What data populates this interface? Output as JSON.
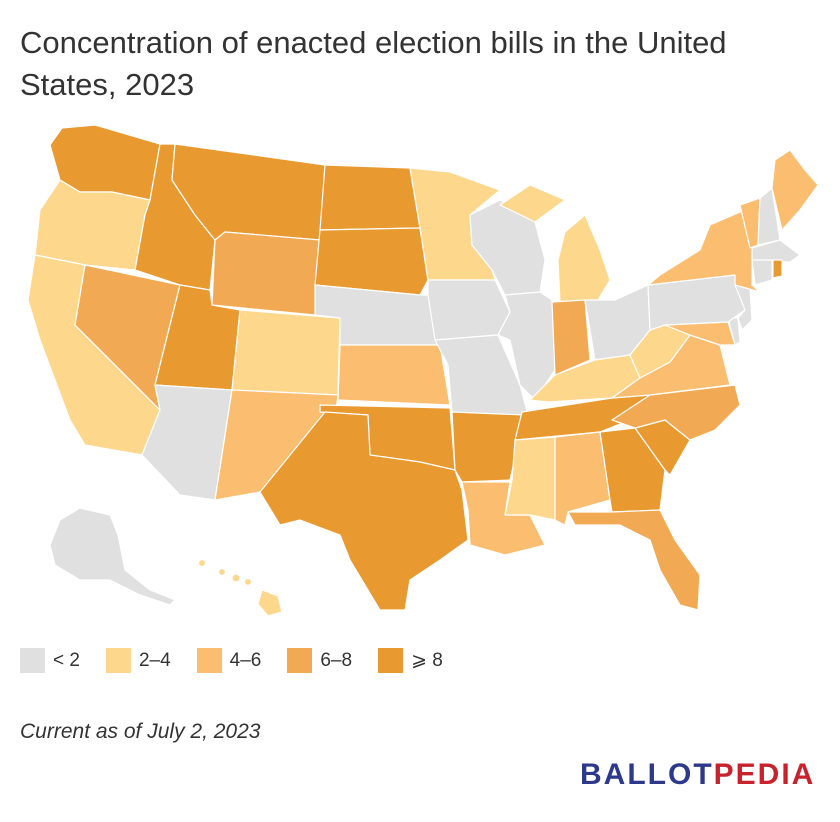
{
  "title": "Concentration of enacted election bills in the United States, 2023",
  "footnote": "Current as of July 2, 2023",
  "brand": {
    "part1": "BALLOT",
    "part2": "PEDIA",
    "color1": "#2d3a8c",
    "color2": "#c8232c"
  },
  "legend": [
    {
      "label": "< 2",
      "color": "#e0e0e0"
    },
    {
      "label": "2–4",
      "color": "#fdd78c"
    },
    {
      "label": "4–6",
      "color": "#fbbd6f"
    },
    {
      "label": "6–8",
      "color": "#f2a953"
    },
    {
      "label": "⩾ 8",
      "color": "#e8992f"
    }
  ],
  "states": {
    "WA": 4,
    "OR": 1,
    "CA": 1,
    "NV": 3,
    "ID": 4,
    "MT": 4,
    "WY": 3,
    "UT": 4,
    "AZ": 0,
    "CO": 1,
    "NM": 2,
    "ND": 4,
    "SD": 4,
    "NE": 0,
    "KS": 2,
    "OK": 4,
    "TX": 4,
    "MN": 1,
    "IA": 0,
    "MO": 0,
    "AR": 4,
    "LA": 2,
    "WI": 0,
    "IL": 0,
    "MI": 1,
    "IN": 3,
    "OH": 0,
    "KY": 1,
    "TN": 4,
    "MS": 1,
    "AL": 2,
    "GA": 4,
    "FL": 3,
    "SC": 4,
    "NC": 3,
    "VA": 2,
    "WV": 1,
    "MD": 2,
    "DE": 0,
    "NJ": 0,
    "PA": 0,
    "NY": 2,
    "VT": 2,
    "NH": 0,
    "ME": 2,
    "MA": 0,
    "CT": 0,
    "RI": 4,
    "AK": 0,
    "HI": 1
  }
}
